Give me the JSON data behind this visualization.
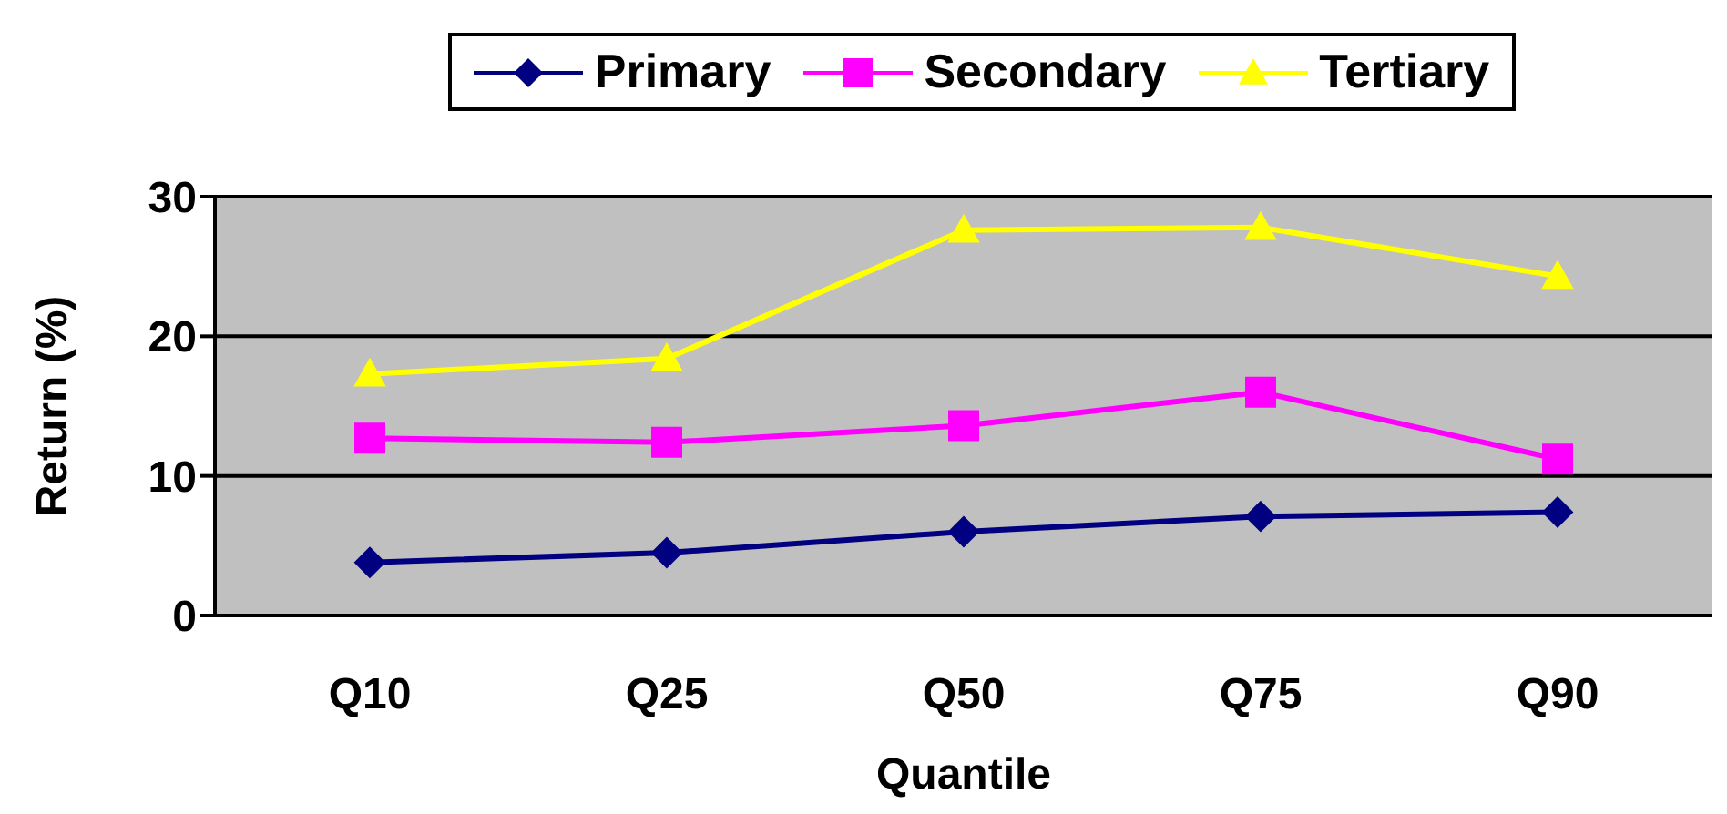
{
  "chart_data": {
    "type": "line",
    "xlabel": "Quantile",
    "ylabel": "Return (%)",
    "categories": [
      "Q10",
      "Q25",
      "Q50",
      "Q75",
      "Q90"
    ],
    "series": [
      {
        "name": "Primary",
        "color": "#000080",
        "marker": "diamond",
        "values": [
          3.8,
          4.5,
          6.0,
          7.1,
          7.4
        ]
      },
      {
        "name": "Secondary",
        "color": "#ff00ff",
        "marker": "square",
        "values": [
          12.7,
          12.4,
          13.6,
          16.0,
          11.2
        ]
      },
      {
        "name": "Tertiary",
        "color": "#ffff00",
        "marker": "triangle",
        "values": [
          17.3,
          18.4,
          27.6,
          27.8,
          24.3
        ]
      }
    ],
    "ylim": [
      0,
      30
    ],
    "yticks": [
      0,
      10,
      20,
      30
    ],
    "grid": "y",
    "legend": "top"
  }
}
